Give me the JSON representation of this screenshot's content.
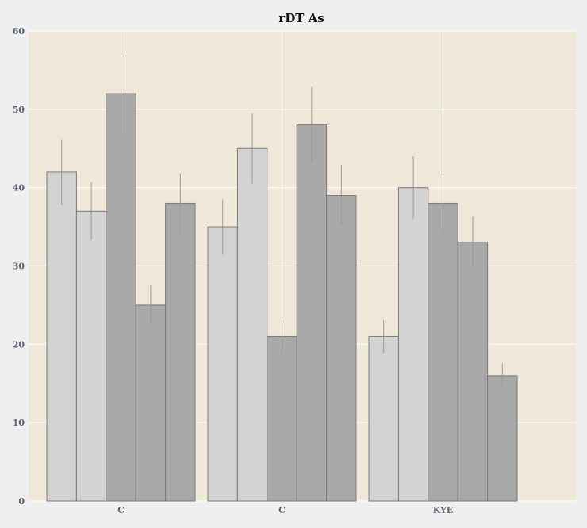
{
  "chart_data": {
    "type": "bar",
    "title": "rDT As",
    "xlabel": "",
    "ylabel": "",
    "categories": [
      "C",
      "C",
      "KYE"
    ],
    "ylim": [
      0,
      60
    ],
    "yticks": [
      0,
      10,
      20,
      30,
      40,
      50,
      60
    ],
    "grid": true,
    "legend": "none",
    "series": [
      {
        "values": [
          42,
          35,
          21
        ],
        "errors": [
          4.2,
          3.5,
          2.1
        ],
        "color": "#d3d3d3"
      },
      {
        "values": [
          37,
          45,
          40
        ],
        "errors": [
          3.7,
          4.5,
          4.0
        ],
        "color": "#d3d3d3"
      },
      {
        "values": [
          52,
          21,
          38
        ],
        "errors": [
          5.2,
          2.1,
          3.8
        ],
        "color": "#a9a9a9"
      },
      {
        "values": [
          25,
          48,
          33
        ],
        "errors": [
          2.5,
          4.8,
          3.3
        ],
        "color": "#a9a9a9"
      },
      {
        "values": [
          38,
          39,
          16
        ],
        "errors": [
          3.8,
          3.9,
          1.6
        ],
        "color": "#a9a9a9"
      }
    ],
    "colors": {
      "plot_background": "#efe8d8",
      "page_background": "#efefef",
      "grid": "#ffffff",
      "bar_edge": "#7a7a7a",
      "error_bar": "#9a9a9a"
    }
  }
}
